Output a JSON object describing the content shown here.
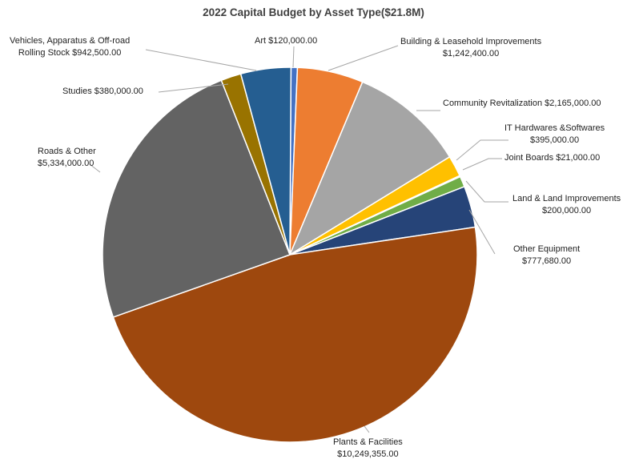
{
  "chart_data": {
    "type": "pie",
    "title": "2022 Capital Budget by Asset Type($21.8M)",
    "slices": [
      {
        "name": "Art",
        "value": 120000,
        "value_label": "$120,000.00",
        "color": "#4472c4"
      },
      {
        "name": "Building & Leasehold Improvements",
        "value": 1242400,
        "value_label": "$1,242,400.00",
        "color": "#ed7d31"
      },
      {
        "name": "Community Revitalization",
        "value": 2165000,
        "value_label": "$2,165,000.00",
        "color": "#a5a5a5"
      },
      {
        "name": "IT Hardwares &Softwares",
        "value": 395000,
        "value_label": "$395,000.00",
        "color": "#ffc000"
      },
      {
        "name": "Joint Boards",
        "value": 21000,
        "value_label": "$21,000.00",
        "color": "#5b9bd5"
      },
      {
        "name": "Land & Land Improvements",
        "value": 200000,
        "value_label": "$200,000.00",
        "color": "#70ad47"
      },
      {
        "name": "Other Equipment",
        "value": 777680,
        "value_label": "$777,680.00",
        "color": "#264478"
      },
      {
        "name": "Plants & Facilities",
        "value": 10249355,
        "value_label": "$10,249,355.00",
        "color": "#9e480e"
      },
      {
        "name": "Roads & Other",
        "value": 5334000,
        "value_label": "$5,334,000.00",
        "color": "#636363"
      },
      {
        "name": "Studies",
        "value": 380000,
        "value_label": "$380,000.00",
        "color": "#997300"
      },
      {
        "name": "Vehicles, Apparatus & Off-road Rolling Stock",
        "value": 942500,
        "value_label": "$942,500.00",
        "color": "#255e91"
      }
    ],
    "labels": {
      "art": "Art  $120,000.00",
      "building_1": "Building & Leasehold Improvements",
      "building_2": "$1,242,400.00",
      "community": "Community Revitalization  $2,165,000.00",
      "it_1": "IT Hardwares &Softwares",
      "it_2": "$395,000.00",
      "joint": "Joint Boards  $21,000.00",
      "land_1": "Land & Land Improvements",
      "land_2": "$200,000.00",
      "other_1": "Other Equipment",
      "other_2": "$777,680.00",
      "plants_1": "Plants & Facilities",
      "plants_2": "$10,249,355.00",
      "roads_1": "Roads & Other",
      "roads_2": "$5,334,000.00",
      "studies": "Studies  $380,000.00",
      "vehicles_1": "Vehicles, Apparatus & Off-road",
      "vehicles_2": "Rolling Stock  $942,500.00"
    }
  }
}
